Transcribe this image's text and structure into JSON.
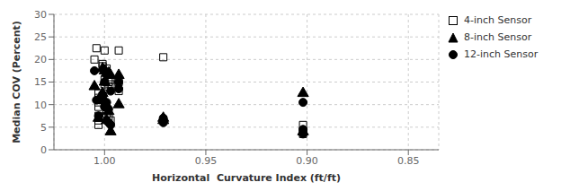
{
  "chart_data": {
    "type": "scatter",
    "xlabel": "Horizontal  Curvature Index (ft/ft)",
    "ylabel": "Median COV (Percent)",
    "xlim": [
      1.025,
      0.835
    ],
    "ylim": [
      0,
      30
    ],
    "xticks": [
      {
        "value": 1.0,
        "label": "1.00"
      },
      0.95,
      {
        "value": 0.9,
        "label": "0.90"
      },
      0.85
    ],
    "yticks": [
      0,
      5,
      10,
      15,
      20,
      25,
      30
    ],
    "grid": true,
    "legend": "right",
    "series": [
      {
        "name": "4-inch Sensor",
        "color": "black",
        "marker": "open-square",
        "x": [
          1.005,
          1.004,
          1.003,
          1.003,
          1.003,
          1.003,
          1.003,
          1.003,
          1.003,
          1.001,
          1.001,
          1.001,
          1.001,
          1.0,
          1.0,
          1.0,
          1.0,
          0.999,
          0.999,
          0.999,
          0.999,
          0.998,
          0.998,
          0.998,
          0.997,
          0.997,
          0.997,
          0.993,
          0.993,
          0.993,
          0.971,
          0.902,
          0.902,
          0.902
        ],
        "values": [
          20.0,
          22.5,
          12.5,
          11.5,
          10.5,
          9.5,
          7.5,
          6.5,
          5.5,
          19.0,
          18.5,
          12.0,
          11.0,
          22.0,
          15.5,
          14.5,
          10.0,
          18.0,
          17.0,
          9.0,
          8.0,
          15.0,
          14.0,
          7.0,
          15.5,
          14.5,
          6.5,
          22.0,
          15.0,
          13.0,
          20.5,
          5.5,
          4.0,
          3.5
        ]
      },
      {
        "name": "8-inch Sensor",
        "color": "black",
        "marker": "triangle",
        "x": [
          1.005,
          1.003,
          1.001,
          1.001,
          1.0,
          1.0,
          0.999,
          0.999,
          0.998,
          0.998,
          0.997,
          0.997,
          0.993,
          0.993,
          0.971,
          0.971,
          0.902,
          0.902
        ],
        "values": [
          14.0,
          7.0,
          18.0,
          12.5,
          17.5,
          15.0,
          17.0,
          6.5,
          17.0,
          8.5,
          16.5,
          4.0,
          16.5,
          10.0,
          7.0,
          6.5,
          12.5,
          4.0
        ]
      },
      {
        "name": "12-inch Sensor",
        "color": "black",
        "marker": "circle",
        "x": [
          1.005,
          1.004,
          1.003,
          1.001,
          1.001,
          1.0,
          1.0,
          0.999,
          0.999,
          0.999,
          0.998,
          0.998,
          0.997,
          0.997,
          0.993,
          0.993,
          0.971,
          0.971,
          0.902,
          0.902,
          0.902
        ],
        "values": [
          17.5,
          11.0,
          7.5,
          12.0,
          11.0,
          15.0,
          9.5,
          10.5,
          9.5,
          6.5,
          9.0,
          6.0,
          13.0,
          5.5,
          15.0,
          13.5,
          7.0,
          6.0,
          10.5,
          4.5,
          3.5
        ]
      }
    ]
  }
}
